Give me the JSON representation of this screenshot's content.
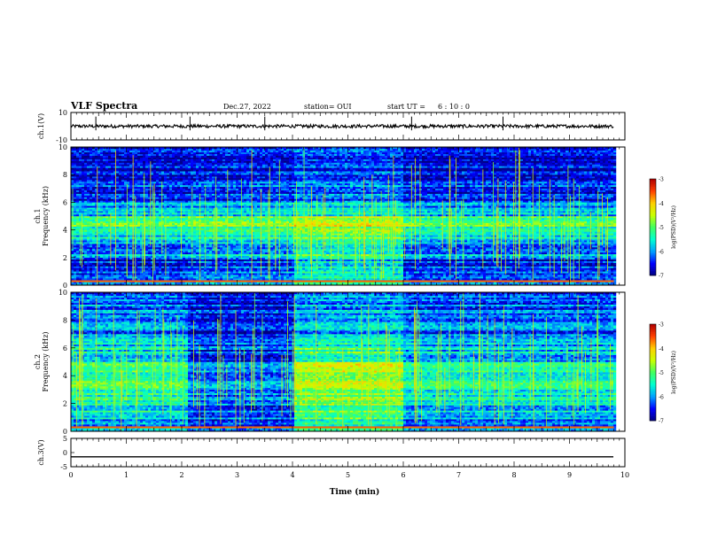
{
  "header": {
    "title": "VLF Spectra",
    "date": "Dec.27, 2022",
    "station": "station= OUI",
    "start_label": "start  UT =",
    "start_time": "6 : 10 : 0"
  },
  "colors": {
    "background": "#ffffff",
    "axis": "#000000",
    "colormap": [
      "#00007f",
      "#0000ff",
      "#00a0ff",
      "#00ffd0",
      "#40ff60",
      "#c8ff00",
      "#ffd000",
      "#ff4000",
      "#b00000"
    ]
  },
  "chart_data": [
    {
      "type": "line",
      "panel": "ch1-waveform",
      "ylabel": "ch.1(V)",
      "ylim": [
        -10,
        10
      ],
      "yticks": [
        "10",
        "-10"
      ],
      "xlim": [
        0,
        10
      ],
      "baseline_value": 0,
      "noise_amplitude": 1.2,
      "spikes_x": [
        0.45,
        2.15,
        3.5,
        6.15,
        7.8
      ]
    },
    {
      "type": "heatmap",
      "panel": "ch1-spectrogram",
      "ylabel": "ch.1\nFrequency (kHz)",
      "ylim": [
        0,
        10
      ],
      "yticks": [
        "0",
        "2",
        "4",
        "6",
        "8",
        "10"
      ],
      "xlim": [
        0,
        9.8
      ],
      "colorbar": {
        "label": "log(PSD)(V²/Hz)",
        "range": [
          -7,
          -3
        ],
        "ticks": [
          "-3",
          "-4",
          "-5",
          "-6",
          "-7"
        ]
      },
      "segments_min": [
        2.1,
        4.0,
        6.0,
        9.8
      ],
      "segment_band_levels_log_psd": [
        [
          -6.3,
          -6.1,
          -5.5,
          -6.3
        ],
        [
          -6.6,
          -6.4,
          -5.7,
          -6.5
        ],
        [
          -6.0,
          -5.8,
          -5.3,
          -6.0
        ],
        [
          -5.6,
          -5.4,
          -5.0,
          -5.6
        ],
        [
          -5.2,
          -5.0,
          -4.6,
          -5.2
        ],
        [
          -5.9,
          -5.8,
          -5.6,
          -5.9
        ],
        [
          -6.4,
          -6.3,
          -6.1,
          -6.4
        ],
        [
          -6.5,
          -6.4,
          -6.2,
          -6.5
        ],
        [
          -6.6,
          -6.5,
          -6.3,
          -6.6
        ],
        [
          -6.7,
          -6.6,
          -6.4,
          -6.7
        ]
      ],
      "band_lower_edges_khz": [
        0,
        1,
        2,
        3,
        4,
        5,
        6,
        7,
        8,
        9
      ]
    },
    {
      "type": "heatmap",
      "panel": "ch2-spectrogram",
      "ylabel": "ch.2\nFrequency (kHz)",
      "ylim": [
        0,
        10
      ],
      "yticks": [
        "0",
        "2",
        "4",
        "6",
        "8",
        "10"
      ],
      "xlim": [
        0,
        9.8
      ],
      "colorbar": {
        "label": "log(PSD)(V²/Hz)",
        "range": [
          -7,
          -3
        ],
        "ticks": [
          "-3",
          "-4",
          "-5",
          "-6",
          "-7"
        ]
      },
      "segments_min": [
        2.1,
        4.0,
        6.0,
        9.8
      ],
      "segment_band_levels_log_psd": [
        [
          -5.8,
          -6.2,
          -5.2,
          -6.0
        ],
        [
          -5.6,
          -6.3,
          -5.0,
          -5.8
        ],
        [
          -5.4,
          -6.2,
          -4.9,
          -5.6
        ],
        [
          -5.2,
          -6.1,
          -4.7,
          -5.4
        ],
        [
          -5.3,
          -6.2,
          -4.6,
          -5.5
        ],
        [
          -5.6,
          -6.4,
          -5.2,
          -5.8
        ],
        [
          -5.8,
          -6.4,
          -5.6,
          -6.0
        ],
        [
          -6.0,
          -6.5,
          -5.8,
          -6.1
        ],
        [
          -6.1,
          -6.5,
          -5.9,
          -6.2
        ],
        [
          -6.2,
          -6.6,
          -6.0,
          -6.3
        ]
      ],
      "band_lower_edges_khz": [
        0,
        1,
        2,
        3,
        4,
        5,
        6,
        7,
        8,
        9
      ]
    },
    {
      "type": "line",
      "panel": "ch3-waveform",
      "ylabel": "ch.3(V)",
      "ylim": [
        -5,
        5
      ],
      "yticks": [
        "5",
        "0",
        "-5"
      ],
      "xlim": [
        0,
        10
      ],
      "baseline_value": -1.5,
      "noise_amplitude": 0,
      "spikes_x": []
    }
  ],
  "time_axis": {
    "xlabel": "Time (min)",
    "xlim": [
      0,
      10
    ],
    "ticks": [
      "0",
      "1",
      "2",
      "3",
      "4",
      "5",
      "6",
      "7",
      "8",
      "9",
      "10"
    ]
  }
}
